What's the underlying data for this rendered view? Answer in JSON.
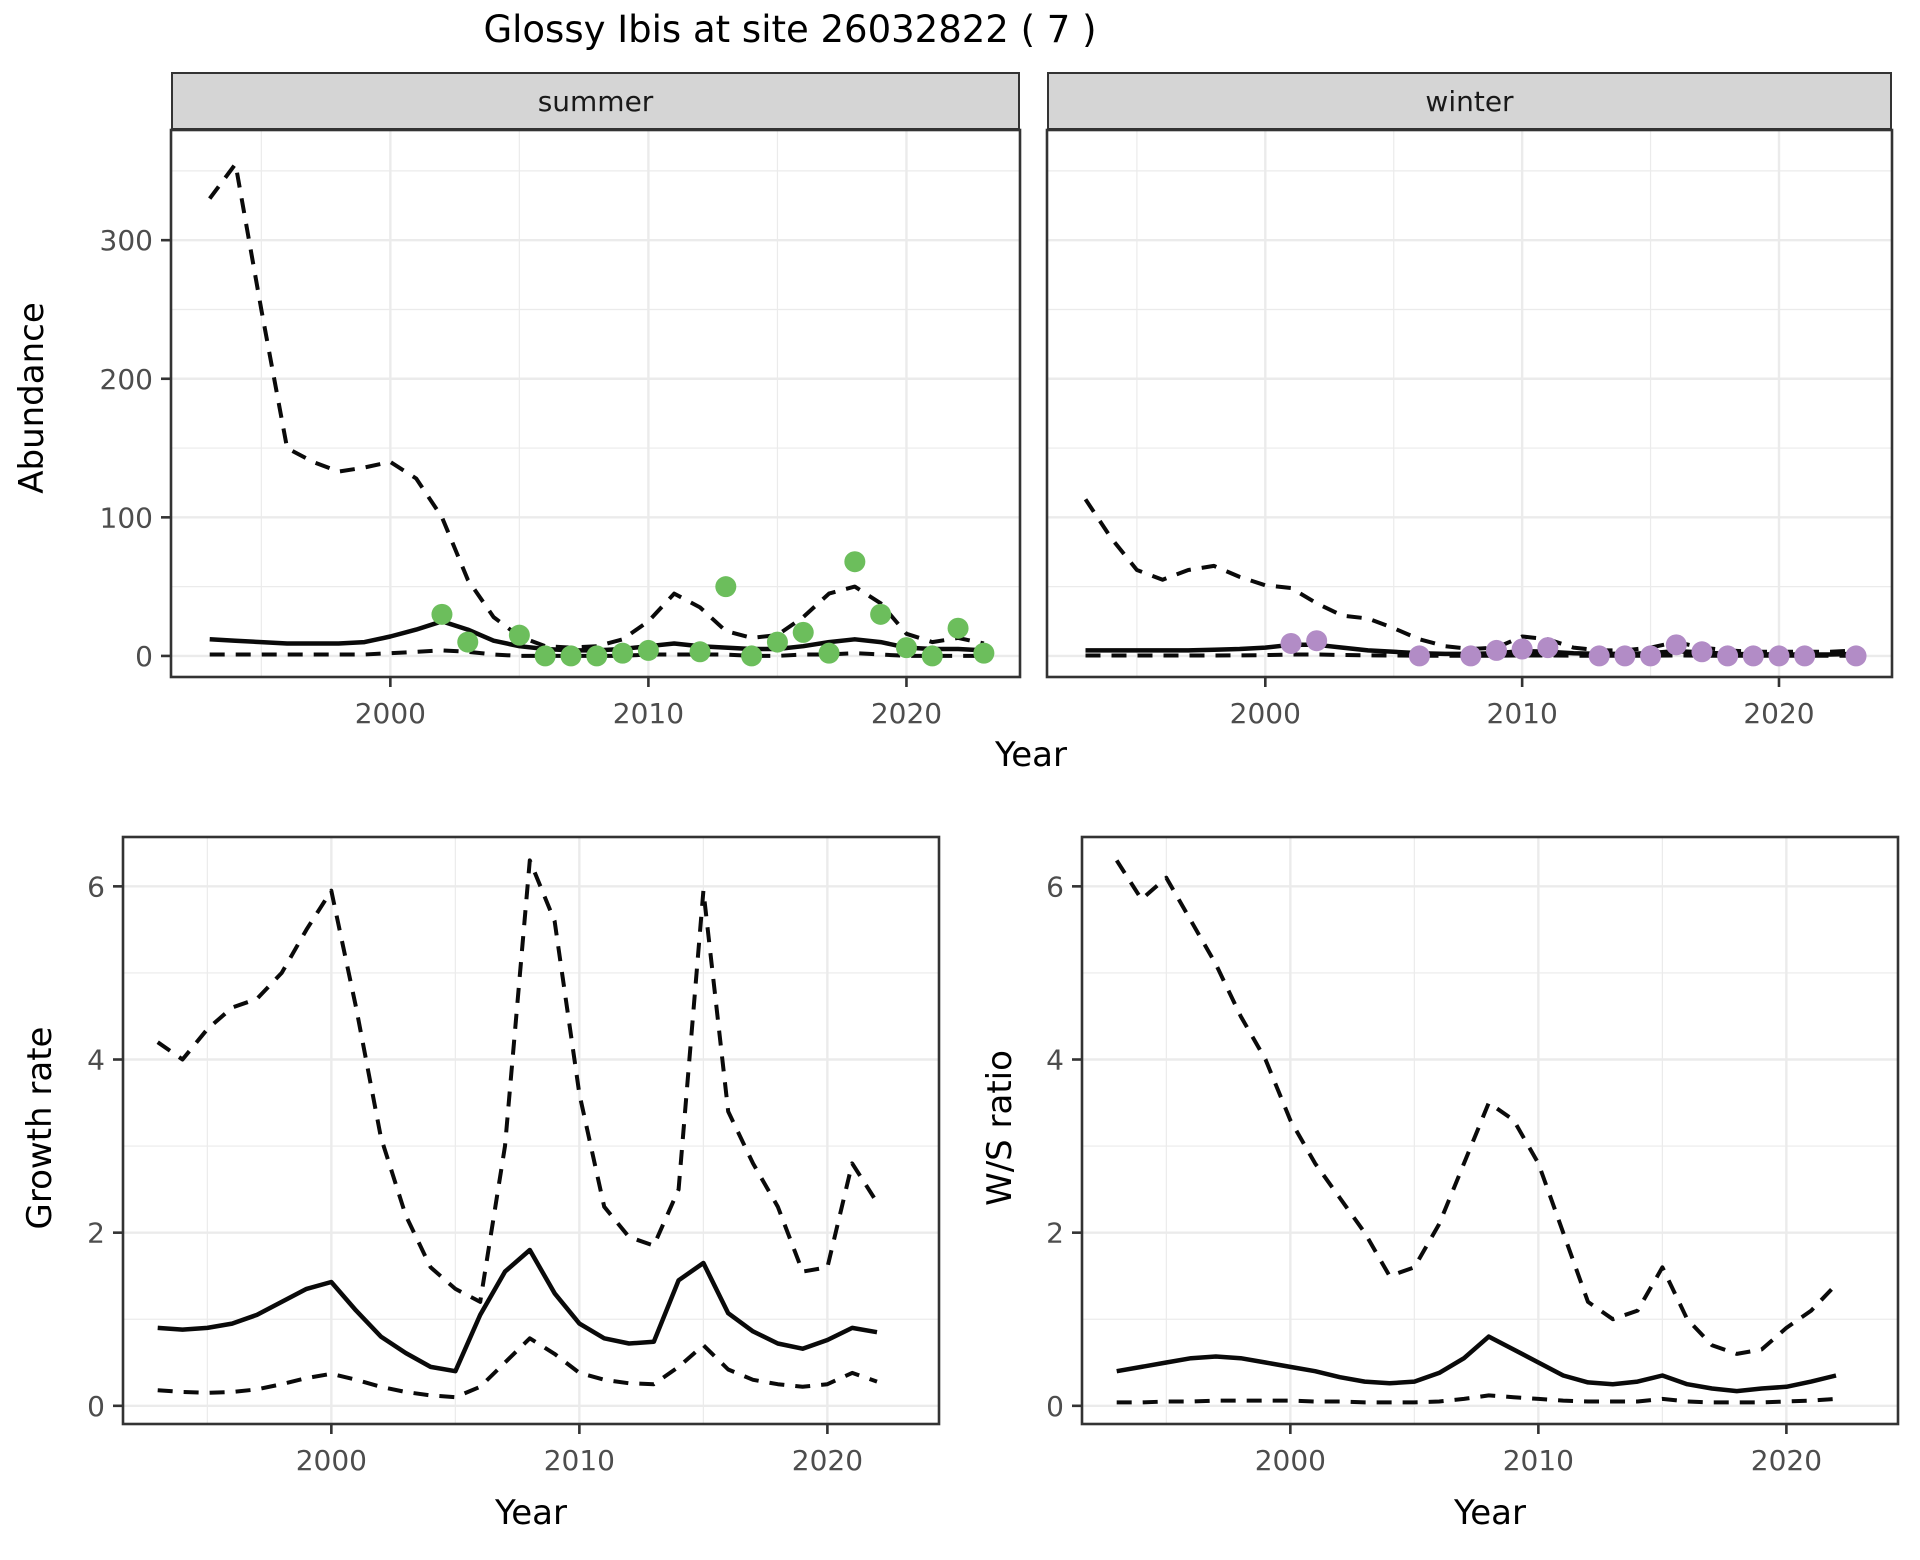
{
  "main": {
    "title": "Glossy Ibis at site 26032822 ( 7 )"
  },
  "chart_data": [
    {
      "panel": "abundance-summer",
      "type": "line",
      "facet": "summer",
      "xlabel": "Year",
      "ylabel": "Abundance",
      "x_ticks": [
        2000,
        2010,
        2020
      ],
      "y_ticks": [
        0,
        100,
        200,
        300
      ],
      "xlim": [
        1991.5,
        2024.4
      ],
      "ylim": [
        -15.2,
        379.5
      ],
      "grid": "on",
      "years": [
        1993,
        1994,
        1995,
        1996,
        1997,
        1998,
        1999,
        2000,
        2001,
        2002,
        2003,
        2004,
        2005,
        2006,
        2007,
        2008,
        2009,
        2010,
        2011,
        2012,
        2013,
        2014,
        2015,
        2016,
        2017,
        2018,
        2019,
        2020,
        2021,
        2022,
        2023
      ],
      "upper_ci": [
        330,
        355,
        250,
        150,
        140,
        133,
        136,
        140,
        128,
        100,
        55,
        28,
        14,
        7,
        6,
        7,
        12,
        25,
        45,
        35,
        18,
        13,
        15,
        28,
        45,
        50,
        38,
        16,
        10,
        13,
        9
      ],
      "mean": [
        12,
        11,
        10,
        9,
        9,
        9,
        10,
        14,
        19,
        25,
        19,
        11,
        7,
        5,
        4,
        4,
        5,
        7,
        9,
        7,
        6,
        5,
        5,
        7,
        10,
        12,
        10,
        6,
        5,
        5,
        4
      ],
      "lower_ci": [
        1,
        1,
        1,
        1,
        1,
        1,
        1,
        2,
        3,
        4,
        3,
        1,
        0,
        0,
        0,
        0,
        0,
        1,
        1,
        1,
        1,
        0,
        0,
        1,
        1,
        2,
        1,
        0,
        0,
        0,
        0
      ],
      "points": {
        "color": "#6CBE5C",
        "years": [
          2002,
          2003,
          2005,
          2006,
          2007,
          2008,
          2009,
          2010,
          2012,
          2013,
          2014,
          2015,
          2016,
          2017,
          2018,
          2019,
          2020,
          2021,
          2022,
          2023
        ],
        "values": [
          30,
          10,
          15,
          0,
          0,
          0,
          2,
          4,
          3,
          50,
          0,
          10,
          17,
          2,
          68,
          30,
          6,
          0,
          20,
          2
        ]
      }
    },
    {
      "panel": "abundance-winter",
      "type": "line",
      "facet": "winter",
      "xlabel": "Year",
      "ylabel": "Abundance",
      "x_ticks": [
        2000,
        2010,
        2020
      ],
      "y_ticks": [
        0,
        100,
        200,
        300
      ],
      "xlim": [
        1991.5,
        2024.4
      ],
      "ylim": [
        -15.2,
        379.5
      ],
      "grid": "on",
      "years": [
        1993,
        1994,
        1995,
        1996,
        1997,
        1998,
        1999,
        2000,
        2001,
        2002,
        2003,
        2004,
        2005,
        2006,
        2007,
        2008,
        2009,
        2010,
        2011,
        2012,
        2013,
        2014,
        2015,
        2016,
        2017,
        2018,
        2019,
        2020,
        2021,
        2022,
        2023
      ],
      "upper_ci": [
        113,
        85,
        62,
        55,
        62,
        65,
        57,
        51,
        49,
        38,
        29,
        27,
        20,
        12,
        7,
        5,
        6,
        14,
        12,
        6,
        4,
        4,
        6,
        10,
        6,
        4,
        3,
        3,
        3,
        3,
        4
      ],
      "mean": [
        4,
        4,
        4,
        4,
        4,
        4.5,
        5,
        6,
        8,
        8,
        6,
        4,
        3,
        2,
        1.5,
        1.5,
        2,
        3.5,
        3,
        2,
        1.5,
        1.5,
        2,
        3.5,
        2.5,
        1.5,
        1.2,
        1,
        1,
        1,
        1.5
      ],
      "lower_ci": [
        0.3,
        0.3,
        0.3,
        0.3,
        0.3,
        0.3,
        0.4,
        0.6,
        1,
        1,
        0.7,
        0.4,
        0.3,
        0.2,
        0.2,
        0.2,
        0.2,
        0.3,
        0.3,
        0.2,
        0.2,
        0.2,
        0.2,
        0.3,
        0.2,
        0.2,
        0.2,
        0.2,
        0.2,
        0.2,
        0.2
      ],
      "points": {
        "color": "#B28CC6",
        "years": [
          2001,
          2002,
          2006,
          2008,
          2009,
          2010,
          2011,
          2013,
          2014,
          2015,
          2016,
          2017,
          2018,
          2019,
          2020,
          2021,
          2023
        ],
        "values": [
          9,
          11,
          0,
          0,
          4,
          5,
          6,
          0,
          0,
          0,
          8,
          3,
          0,
          0,
          0,
          0,
          0
        ]
      }
    },
    {
      "panel": "growth-rate",
      "type": "line",
      "facet": "",
      "xlabel": "Year",
      "ylabel": "Growth rate",
      "x_ticks": [
        2000,
        2010,
        2020
      ],
      "y_ticks": [
        0,
        2,
        4,
        6
      ],
      "xlim": [
        1991.6,
        2024.5
      ],
      "ylim": [
        -0.21,
        6.57
      ],
      "grid": "on",
      "years": [
        1993,
        1994,
        1995,
        1996,
        1997,
        1998,
        1999,
        2000,
        2001,
        2002,
        2003,
        2004,
        2005,
        2006,
        2007,
        2008,
        2009,
        2010,
        2011,
        2012,
        2013,
        2014,
        2015,
        2016,
        2017,
        2018,
        2019,
        2020,
        2021,
        2022
      ],
      "upper_ci": [
        4.2,
        4.0,
        4.35,
        4.6,
        4.7,
        5.0,
        5.5,
        5.95,
        4.6,
        3.1,
        2.2,
        1.6,
        1.35,
        1.2,
        3.0,
        6.3,
        5.6,
        3.6,
        2.3,
        1.95,
        1.85,
        2.5,
        5.95,
        3.4,
        2.8,
        2.3,
        1.55,
        1.6,
        2.8,
        2.35
      ],
      "mean": [
        0.9,
        0.88,
        0.9,
        0.95,
        1.05,
        1.2,
        1.35,
        1.43,
        1.1,
        0.8,
        0.61,
        0.45,
        0.4,
        1.05,
        1.55,
        1.8,
        1.3,
        0.95,
        0.78,
        0.72,
        0.74,
        1.45,
        1.65,
        1.07,
        0.86,
        0.72,
        0.66,
        0.76,
        0.9,
        0.85
      ],
      "lower_ci": [
        0.18,
        0.16,
        0.15,
        0.16,
        0.19,
        0.25,
        0.32,
        0.37,
        0.3,
        0.22,
        0.16,
        0.12,
        0.1,
        0.22,
        0.5,
        0.78,
        0.6,
        0.38,
        0.3,
        0.26,
        0.25,
        0.45,
        0.7,
        0.42,
        0.3,
        0.25,
        0.22,
        0.25,
        0.38,
        0.28
      ],
      "points": null
    },
    {
      "panel": "ws-ratio",
      "type": "line",
      "facet": "",
      "xlabel": "Year",
      "ylabel": "W/S ratio",
      "x_ticks": [
        2000,
        2010,
        2020
      ],
      "y_ticks": [
        0,
        2,
        4,
        6
      ],
      "xlim": [
        1991.6,
        2024.5
      ],
      "ylim": [
        -0.21,
        6.57
      ],
      "grid": "on",
      "years": [
        1993,
        1994,
        1995,
        1996,
        1997,
        1998,
        1999,
        2000,
        2001,
        2002,
        2003,
        2004,
        2005,
        2006,
        2007,
        2008,
        2009,
        2010,
        2011,
        2012,
        2013,
        2014,
        2015,
        2016,
        2017,
        2018,
        2019,
        2020,
        2021,
        2022
      ],
      "upper_ci": [
        6.3,
        5.85,
        6.1,
        5.6,
        5.1,
        4.5,
        4.0,
        3.3,
        2.8,
        2.4,
        2.0,
        1.5,
        1.6,
        2.1,
        2.8,
        3.5,
        3.3,
        2.8,
        2.0,
        1.2,
        1.0,
        1.1,
        1.6,
        1.0,
        0.7,
        0.6,
        0.65,
        0.9,
        1.1,
        1.4
      ],
      "mean": [
        0.4,
        0.45,
        0.5,
        0.55,
        0.57,
        0.55,
        0.5,
        0.45,
        0.4,
        0.33,
        0.28,
        0.26,
        0.28,
        0.38,
        0.55,
        0.8,
        0.65,
        0.5,
        0.35,
        0.27,
        0.25,
        0.28,
        0.35,
        0.25,
        0.2,
        0.17,
        0.2,
        0.22,
        0.28,
        0.35
      ],
      "lower_ci": [
        0.04,
        0.04,
        0.05,
        0.05,
        0.06,
        0.06,
        0.06,
        0.06,
        0.05,
        0.05,
        0.04,
        0.04,
        0.04,
        0.05,
        0.08,
        0.12,
        0.1,
        0.08,
        0.06,
        0.05,
        0.05,
        0.05,
        0.08,
        0.05,
        0.04,
        0.04,
        0.04,
        0.05,
        0.06,
        0.08
      ],
      "points": null
    }
  ],
  "style": {
    "line_color": "#0a0a0a",
    "grid_color": "#EBEBEB",
    "border_color": "#333333",
    "strip_bg": "#D5D5D5",
    "tick_label_color": "#4D4D4D"
  }
}
